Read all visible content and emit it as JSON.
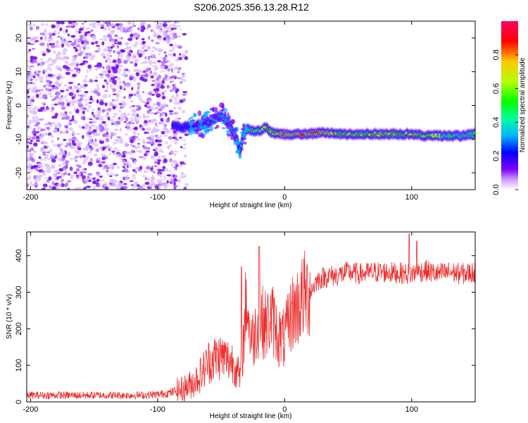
{
  "figure": {
    "title": "S206.2025.356.13.28.R12"
  },
  "chart_data": [
    {
      "type": "heatmap",
      "name": "spectrogram",
      "title": "",
      "xlabel": "Height of straight line (km)",
      "ylabel": "Frequency (Hz)",
      "xlim": [
        -203,
        150
      ],
      "ylim": [
        -25,
        25
      ],
      "xticks": [
        -200,
        -100,
        0,
        100
      ],
      "yticks": [
        -20,
        -10,
        0,
        10,
        20
      ],
      "grid": false,
      "colormap": [
        "#ffffff",
        "#8000ff",
        "#0000ff",
        "#00b4ff",
        "#00ffa0",
        "#00ff00",
        "#b4ff00",
        "#ffc800",
        "#ff0000",
        "#ff0064"
      ],
      "noise_region_x": [
        -203,
        -85
      ],
      "signal_track": {
        "x": [
          -88,
          -80,
          -70,
          -62,
          -55,
          -50,
          -45,
          -40,
          -37,
          -35,
          -33,
          -30,
          -25,
          -20,
          -15,
          -10,
          -5,
          0,
          10,
          20,
          30,
          40,
          50,
          60,
          70,
          80,
          90,
          100,
          110,
          120,
          130,
          140,
          150
        ],
        "freq": [
          -6,
          -6.5,
          -6,
          -5.5,
          -4,
          -3,
          -5,
          -8,
          -11,
          -14,
          -9,
          -7,
          -7.5,
          -7.5,
          -6.5,
          -8,
          -8.5,
          -8.5,
          -8.5,
          -8.5,
          -8,
          -8.5,
          -8.5,
          -8.5,
          -8.5,
          -8.5,
          -8.5,
          -8.5,
          -9,
          -9,
          -9,
          -9,
          -8.5
        ],
        "amplitude": [
          0.3,
          0.3,
          0.3,
          0.35,
          0.35,
          0.4,
          0.4,
          0.4,
          0.4,
          0.35,
          0.55,
          0.6,
          0.6,
          0.6,
          0.7,
          0.75,
          0.8,
          0.85,
          0.85,
          0.85,
          0.85,
          0.8,
          0.8,
          0.8,
          0.8,
          0.8,
          0.75,
          0.75,
          0.7,
          0.65,
          0.6,
          0.6,
          0.6
        ]
      }
    },
    {
      "type": "colorbar",
      "name": "amplitude-colorbar",
      "label": "Normalized spectral amplitude",
      "range": [
        0.0,
        1.0
      ],
      "ticks": [
        "0.0",
        "0.2",
        "0.4",
        "0.6",
        "0.8"
      ]
    },
    {
      "type": "line",
      "name": "snr",
      "title": "",
      "xlabel": "Height of straight line (km)",
      "ylabel": "SNR (10 * v/v)",
      "xlim": [
        -203,
        150
      ],
      "ylim": [
        0,
        465
      ],
      "xticks": [
        -200,
        -100,
        0,
        100
      ],
      "yticks": [
        0,
        100,
        200,
        300,
        400
      ],
      "color": "#ee2a2a",
      "grid": false,
      "x": [
        -203,
        -190,
        -175,
        -160,
        -145,
        -130,
        -115,
        -100,
        -90,
        -80,
        -75,
        -70,
        -65,
        -60,
        -55,
        -50,
        -45,
        -40,
        -35,
        -32,
        -30,
        -28,
        -25,
        -20,
        -15,
        -10,
        -5,
        0,
        5,
        10,
        15,
        20,
        25,
        30,
        35,
        40,
        45,
        50,
        60,
        70,
        80,
        90,
        100,
        110,
        120,
        130,
        140,
        150
      ],
      "y": [
        18,
        18,
        18,
        18,
        18,
        18,
        18,
        20,
        25,
        35,
        45,
        60,
        80,
        110,
        120,
        125,
        115,
        110,
        60,
        180,
        300,
        200,
        170,
        230,
        210,
        230,
        180,
        170,
        240,
        260,
        290,
        300,
        330,
        340,
        345,
        345,
        350,
        355,
        350,
        355,
        355,
        352,
        350,
        360,
        350,
        355,
        350,
        355
      ],
      "spikes": [
        {
          "x": -34,
          "y": 370
        },
        {
          "x": -20,
          "y": 425
        },
        {
          "x": 98,
          "y": 460
        },
        {
          "x": 104,
          "y": 440
        }
      ]
    }
  ]
}
